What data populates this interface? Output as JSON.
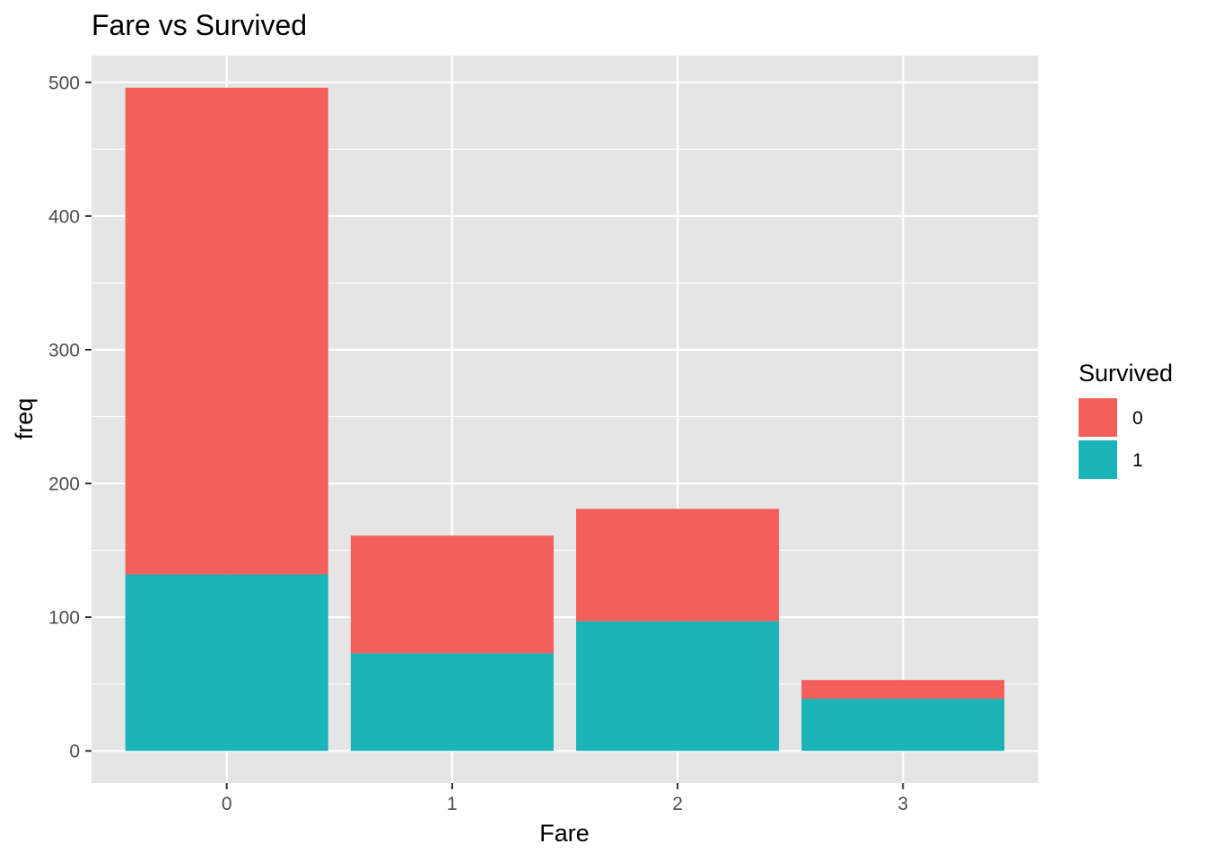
{
  "chart_data": {
    "type": "bar",
    "stacked": true,
    "title": "Fare vs Survived",
    "xlabel": "Fare",
    "ylabel": "freq",
    "categories": [
      "0",
      "1",
      "2",
      "3"
    ],
    "series": [
      {
        "name": "0",
        "values": [
          364,
          88,
          84,
          14
        ],
        "color": "#f8766d"
      },
      {
        "name": "1",
        "values": [
          132,
          73,
          97,
          39
        ],
        "color": "#00bfc4"
      }
    ],
    "ylim": [
      -24,
      520
    ],
    "yticks": [
      0,
      100,
      200,
      300,
      400,
      500
    ],
    "ytick_labels": [
      "0",
      "100",
      "200",
      "300",
      "400",
      "500"
    ],
    "grid": true,
    "legend": {
      "title": "Survived",
      "placement": "right"
    },
    "colors": {
      "panel_background": "#e5e5e5",
      "grid": "#ffffff",
      "series_0": "#f35f5b",
      "series_1": "#1ab3b8"
    }
  }
}
